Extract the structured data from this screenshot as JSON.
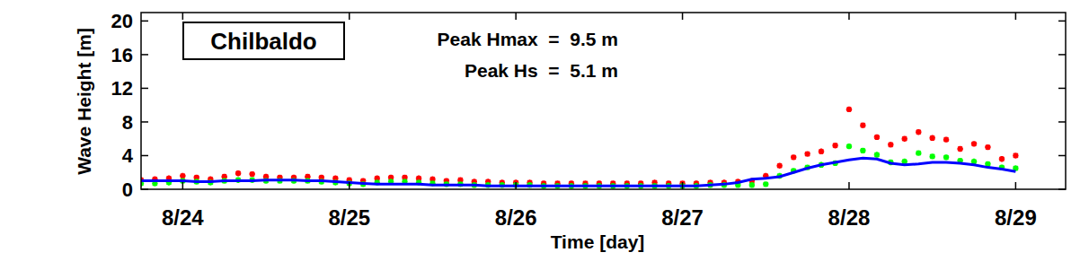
{
  "chart_data": {
    "type": "scatter",
    "title": "Chilbaldo",
    "annotations": [
      "Peak Hmax  =  9.5 m",
      "Peak Hs  =  5.1 m"
    ],
    "x_label": "Time [day]",
    "y_label": "Wave Height [m]",
    "xlim": [
      23.75,
      29.3
    ],
    "xticks": [
      {
        "value": 24,
        "label": "8/24"
      },
      {
        "value": 25,
        "label": "8/25"
      },
      {
        "value": 26,
        "label": "8/26"
      },
      {
        "value": 27,
        "label": "8/27"
      },
      {
        "value": 28,
        "label": "8/28"
      },
      {
        "value": 29,
        "label": "8/29"
      }
    ],
    "ylim": [
      0,
      21
    ],
    "yticks": [
      0,
      4,
      8,
      12,
      16,
      20
    ],
    "grid": false,
    "x": [
      23.75,
      23.833,
      23.917,
      24,
      24.083,
      24.167,
      24.25,
      24.333,
      24.417,
      24.5,
      24.583,
      24.667,
      24.75,
      24.833,
      24.917,
      25,
      25.083,
      25.167,
      25.25,
      25.333,
      25.417,
      25.5,
      25.583,
      25.667,
      25.75,
      25.833,
      25.917,
      26,
      26.083,
      26.167,
      26.25,
      26.333,
      26.417,
      26.5,
      26.583,
      26.667,
      26.75,
      26.833,
      26.917,
      27,
      27.083,
      27.167,
      27.25,
      27.333,
      27.417,
      27.5,
      27.583,
      27.667,
      27.75,
      27.833,
      27.917,
      28,
      28.083,
      28.167,
      28.25,
      28.333,
      28.417,
      28.5,
      28.583,
      28.667,
      28.75,
      28.833,
      28.917,
      29
    ],
    "series": [
      {
        "color": "#ff0000",
        "marker": "star",
        "type": "scatter",
        "values": [
          1.1,
          1.2,
          1.3,
          1.6,
          1.4,
          1.2,
          1.5,
          1.9,
          1.8,
          1.5,
          1.4,
          1.4,
          1.5,
          1.4,
          1.3,
          1.1,
          1.0,
          1.3,
          1.4,
          1.4,
          1.3,
          1.2,
          1.0,
          1.1,
          0.9,
          0.9,
          0.8,
          0.8,
          0.8,
          0.7,
          0.7,
          0.7,
          0.7,
          0.7,
          0.7,
          0.7,
          0.7,
          0.8,
          0.7,
          0.7,
          0.7,
          0.8,
          0.8,
          0.9,
          1.0,
          1.6,
          2.8,
          3.8,
          4.2,
          4.5,
          5.2,
          9.5,
          7.6,
          6.2,
          5.3,
          6.0,
          6.8,
          6.1,
          5.9,
          4.8,
          5.4,
          5.0,
          3.6,
          4.0
        ]
      },
      {
        "color": "#00ff00",
        "marker": "star",
        "type": "scatter",
        "values": [
          0.7,
          0.7,
          0.8,
          1.0,
          0.9,
          0.8,
          1.0,
          1.1,
          1.1,
          1.0,
          1.0,
          1.0,
          1.0,
          0.9,
          0.8,
          0.7,
          0.6,
          0.8,
          0.9,
          0.9,
          0.8,
          0.7,
          0.6,
          0.6,
          0.5,
          0.5,
          0.5,
          0.5,
          0.5,
          0.4,
          0.4,
          0.4,
          0.4,
          0.4,
          0.4,
          0.4,
          0.4,
          0.4,
          0.4,
          0.4,
          0.4,
          0.5,
          0.5,
          0.5,
          0.5,
          0.6,
          1.6,
          2.2,
          2.6,
          2.9,
          3.1,
          5.1,
          4.6,
          4.1,
          3.2,
          3.3,
          4.3,
          3.9,
          3.8,
          3.4,
          3.3,
          3.0,
          2.6,
          2.5
        ]
      },
      {
        "color": "#0000ff",
        "type": "line",
        "line_style": "solid",
        "values": [
          1.0,
          1.0,
          1.0,
          1.0,
          0.9,
          0.9,
          1.0,
          1.0,
          1.0,
          1.1,
          1.1,
          1.1,
          1.0,
          1.0,
          0.9,
          0.8,
          0.7,
          0.6,
          0.6,
          0.6,
          0.6,
          0.5,
          0.5,
          0.5,
          0.5,
          0.4,
          0.4,
          0.4,
          0.4,
          0.4,
          0.4,
          0.4,
          0.4,
          0.4,
          0.4,
          0.4,
          0.4,
          0.4,
          0.4,
          0.4,
          0.4,
          0.5,
          0.6,
          0.8,
          1.2,
          1.3,
          1.5,
          2.0,
          2.5,
          2.9,
          3.2,
          3.5,
          3.7,
          3.6,
          3.1,
          2.9,
          3.0,
          3.2,
          3.2,
          3.1,
          2.9,
          2.6,
          2.4,
          2.1
        ]
      }
    ]
  }
}
